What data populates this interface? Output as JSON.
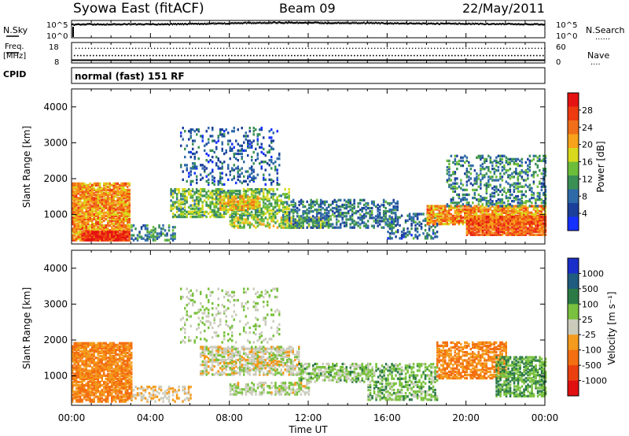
{
  "header": {
    "station": "Syowa East (fitACF)",
    "beam": "Beam 09",
    "date": "22/May/2011"
  },
  "panel_labels": {
    "nsky": "N.Sky",
    "nsearch": "N.Search",
    "nsearch_mark": "......",
    "freq_line1": "Freq.",
    "freq_line2": "[MHz]",
    "nave": "Nave",
    "nave_mark": "....",
    "cpid": "CPID",
    "cpid_value": "normal (fast) 151 RF"
  },
  "time_axis": {
    "label": "Time UT",
    "ticks": [
      "00:00",
      "04:00",
      "08:00",
      "12:00",
      "16:00",
      "20:00",
      "00:00"
    ]
  },
  "colors": {
    "power_scale": [
      "#1530ff",
      "#1b3f9a",
      "#2f6aa8",
      "#3a8f55",
      "#6cbd3a",
      "#d8d81c",
      "#f7a21a",
      "#f06f18",
      "#ee3a10",
      "#e51212"
    ],
    "velocity_scale": [
      "#1a2fc9",
      "#1f5c7f",
      "#2c7a46",
      "#79c13e",
      "#cbcbbc",
      "#f49a1d",
      "#f36f11",
      "#ea4010",
      "#e01010"
    ]
  },
  "chart_data": [
    {
      "type": "line",
      "name": "noise",
      "ylabels_left": [
        "10^5",
        "10^0"
      ],
      "ylabels_right": [
        "10^5",
        "10^0"
      ],
      "x_hours": [
        0,
        1,
        2,
        3,
        4,
        5,
        6,
        7,
        8,
        9,
        10,
        11,
        12,
        13,
        14,
        15,
        16,
        17,
        18,
        19,
        20,
        21,
        22,
        23,
        24
      ],
      "nsky_log10": [
        4.2,
        4.3,
        4.3,
        4.3,
        4.3,
        4.3,
        4.4,
        4.5,
        4.6,
        4.7,
        4.8,
        4.8,
        4.8,
        4.7,
        4.7,
        4.7,
        4.6,
        4.6,
        4.5,
        4.5,
        4.5,
        4.4,
        4.4,
        4.3,
        4.3
      ]
    },
    {
      "type": "line",
      "name": "frequency-nave",
      "ylabels_left": [
        "18",
        "8"
      ],
      "ylabels_right": [
        "60",
        "0"
      ],
      "freq_mhz": 11.5,
      "nave": 44
    },
    {
      "type": "heatmap",
      "title": "Power",
      "ylabel": "Slant Range [km]",
      "xlabel": "Time UT",
      "y_ticks": [
        "4000",
        "3000",
        "2000",
        "1000"
      ],
      "ylim": [
        180,
        4500
      ],
      "xlim_hours": [
        0,
        24
      ],
      "colorbar": {
        "label": "Power [dB]",
        "ticks": [
          "28",
          "24",
          "20",
          "16",
          "12",
          "8",
          "4"
        ],
        "range": [
          0,
          32
        ]
      },
      "regions": [
        {
          "t0": 0.0,
          "t1": 2.9,
          "r0": 250,
          "r1": 1850,
          "v": 22,
          "d": 0.85
        },
        {
          "t0": 0.5,
          "t1": 2.9,
          "r0": 250,
          "r1": 520,
          "v": 29,
          "d": 0.9
        },
        {
          "t0": 3.0,
          "t1": 5.2,
          "r0": 250,
          "r1": 700,
          "v": 10,
          "d": 0.45
        },
        {
          "t0": 5.0,
          "t1": 11.0,
          "r0": 900,
          "r1": 1700,
          "v": 14,
          "d": 0.55
        },
        {
          "t0": 5.5,
          "t1": 10.5,
          "r0": 1800,
          "r1": 3400,
          "v": 7,
          "d": 0.2
        },
        {
          "t0": 7.5,
          "t1": 9.5,
          "r0": 1100,
          "r1": 1500,
          "v": 20,
          "d": 0.6
        },
        {
          "t0": 8.0,
          "t1": 13.0,
          "r0": 600,
          "r1": 900,
          "v": 16,
          "d": 0.55
        },
        {
          "t0": 11.0,
          "t1": 16.5,
          "r0": 600,
          "r1": 1400,
          "v": 9,
          "d": 0.45
        },
        {
          "t0": 16.0,
          "t1": 18.5,
          "r0": 300,
          "r1": 1000,
          "v": 8,
          "d": 0.35
        },
        {
          "t0": 18.0,
          "t1": 24.0,
          "r0": 700,
          "r1": 1200,
          "v": 22,
          "d": 0.8
        },
        {
          "t0": 20.0,
          "t1": 24.0,
          "r0": 400,
          "r1": 900,
          "v": 25,
          "d": 0.85
        },
        {
          "t0": 19.0,
          "t1": 24.0,
          "r0": 1200,
          "r1": 2600,
          "v": 10,
          "d": 0.3
        }
      ]
    },
    {
      "type": "heatmap",
      "title": "Velocity",
      "ylabel": "Slant Range [km]",
      "xlabel": "Time UT",
      "y_ticks": [
        "4000",
        "3000",
        "2000",
        "1000"
      ],
      "ylim": [
        180,
        4500
      ],
      "xlim_hours": [
        0,
        24
      ],
      "colorbar": {
        "label": "Velocity [m s⁻¹]",
        "ticks": [
          "1000",
          "500",
          "100",
          "25",
          "-25",
          "-100",
          "-500",
          "-1000"
        ],
        "range": [
          -1200,
          1200
        ]
      },
      "regions": [
        {
          "t0": 0.0,
          "t1": 3.0,
          "r0": 250,
          "r1": 1900,
          "v": -400,
          "d": 0.8
        },
        {
          "t0": 3.0,
          "t1": 6.0,
          "r0": 250,
          "r1": 700,
          "v": -150,
          "d": 0.35
        },
        {
          "t0": 6.5,
          "t1": 11.5,
          "r0": 1000,
          "r1": 1800,
          "v": 0,
          "d": 0.6
        },
        {
          "t0": 5.5,
          "t1": 10.5,
          "r0": 1900,
          "r1": 3400,
          "v": 150,
          "d": 0.15
        },
        {
          "t0": 11.5,
          "t1": 15.0,
          "r0": 800,
          "r1": 1300,
          "v": 200,
          "d": 0.55
        },
        {
          "t0": 8.0,
          "t1": 12.0,
          "r0": 450,
          "r1": 800,
          "v": 80,
          "d": 0.5
        },
        {
          "t0": 15.0,
          "t1": 18.5,
          "r0": 300,
          "r1": 1300,
          "v": 300,
          "d": 0.45
        },
        {
          "t0": 18.5,
          "t1": 22.0,
          "r0": 900,
          "r1": 1900,
          "v": -400,
          "d": 0.6
        },
        {
          "t0": 21.5,
          "t1": 24.0,
          "r0": 400,
          "r1": 1500,
          "v": 400,
          "d": 0.6
        }
      ]
    }
  ]
}
